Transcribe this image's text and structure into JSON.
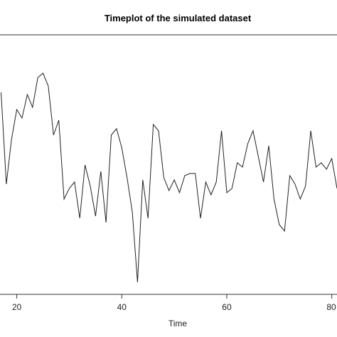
{
  "chart_data": {
    "type": "line",
    "title": "Timeplot of the simulated dataset",
    "xlabel": "Time",
    "ylabel": "",
    "xlim": [
      16.8,
      81
    ],
    "ylim": [
      0,
      1
    ],
    "x_ticks": [
      20,
      40,
      60,
      80
    ],
    "x_tick_labels": [
      "20",
      "40",
      "60",
      "80"
    ],
    "grid": false,
    "line_color": "#222222",
    "series": [
      {
        "x": [
          17,
          18,
          19,
          20,
          21,
          22,
          23,
          24,
          25,
          26,
          27,
          28,
          29,
          30,
          31,
          32,
          33,
          34,
          35,
          36,
          37,
          38,
          39,
          40,
          41,
          42,
          43,
          44,
          45,
          46,
          47,
          48,
          49,
          50,
          51,
          52,
          53,
          54,
          55,
          56,
          57,
          58,
          59,
          60,
          61,
          62,
          63,
          64,
          65,
          66,
          67,
          68,
          69,
          70,
          71,
          72,
          73,
          74,
          75,
          76,
          77,
          78,
          79,
          80,
          81
        ],
        "y": [
          0.9,
          0.47,
          0.68,
          0.82,
          0.78,
          0.89,
          0.83,
          0.97,
          0.99,
          0.93,
          0.7,
          0.77,
          0.4,
          0.45,
          0.48,
          0.31,
          0.56,
          0.46,
          0.32,
          0.53,
          0.29,
          0.7,
          0.73,
          0.64,
          0.5,
          0.34,
          0.01,
          0.49,
          0.31,
          0.75,
          0.72,
          0.5,
          0.44,
          0.49,
          0.43,
          0.51,
          0.52,
          0.52,
          0.31,
          0.48,
          0.42,
          0.48,
          0.72,
          0.43,
          0.45,
          0.57,
          0.55,
          0.66,
          0.72,
          0.6,
          0.48,
          0.65,
          0.4,
          0.28,
          0.25,
          0.51,
          0.47,
          0.4,
          0.46,
          0.72,
          0.55,
          0.57,
          0.54,
          0.59,
          0.45
        ]
      }
    ]
  }
}
